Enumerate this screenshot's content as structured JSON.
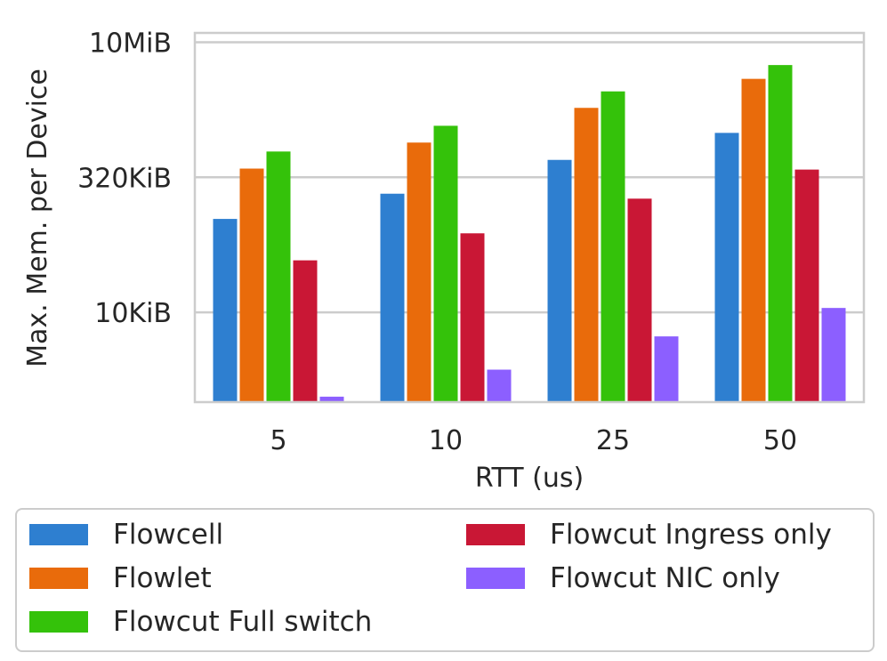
{
  "chart_data": {
    "type": "bar",
    "ylabel": "Max. Mem. per Device",
    "xlabel": "RTT (us)",
    "y_scale": "log",
    "y_unit": "KiB",
    "ylim": [
      1.0,
      13000
    ],
    "y_ticks": [
      {
        "value": 10,
        "label": "10KiB"
      },
      {
        "value": 320,
        "label": "320KiB"
      },
      {
        "value": 10240,
        "label": "10MiB"
      }
    ],
    "categories": [
      "5",
      "10",
      "25",
      "50"
    ],
    "series": [
      {
        "name": "Flowcell",
        "color": "#2e7fd0",
        "values": [
          110,
          210,
          500,
          1000
        ]
      },
      {
        "name": "Flowlet",
        "color": "#e96b0b",
        "values": [
          400,
          780,
          1900,
          4000
        ]
      },
      {
        "name": "Flowcut Full switch",
        "color": "#34c20a",
        "values": [
          620,
          1200,
          2900,
          5700
        ]
      },
      {
        "name": "Flowcut Ingress only",
        "color": "#c91735",
        "values": [
          38,
          76,
          185,
          390
        ]
      },
      {
        "name": "Flowcut NIC only",
        "color": "#8c5fff",
        "values": [
          1.15,
          2.3,
          5.4,
          11.2
        ]
      }
    ],
    "grid": "horizontal",
    "legend_placement": "below"
  },
  "legend": {
    "items": [
      {
        "label": "Flowcell",
        "color": "#2e7fd0"
      },
      {
        "label": "Flowcut Ingress only",
        "color": "#c91735"
      },
      {
        "label": "Flowlet",
        "color": "#e96b0b"
      },
      {
        "label": "Flowcut NIC only",
        "color": "#8c5fff"
      },
      {
        "label": "Flowcut Full switch",
        "color": "#34c20a"
      }
    ]
  }
}
